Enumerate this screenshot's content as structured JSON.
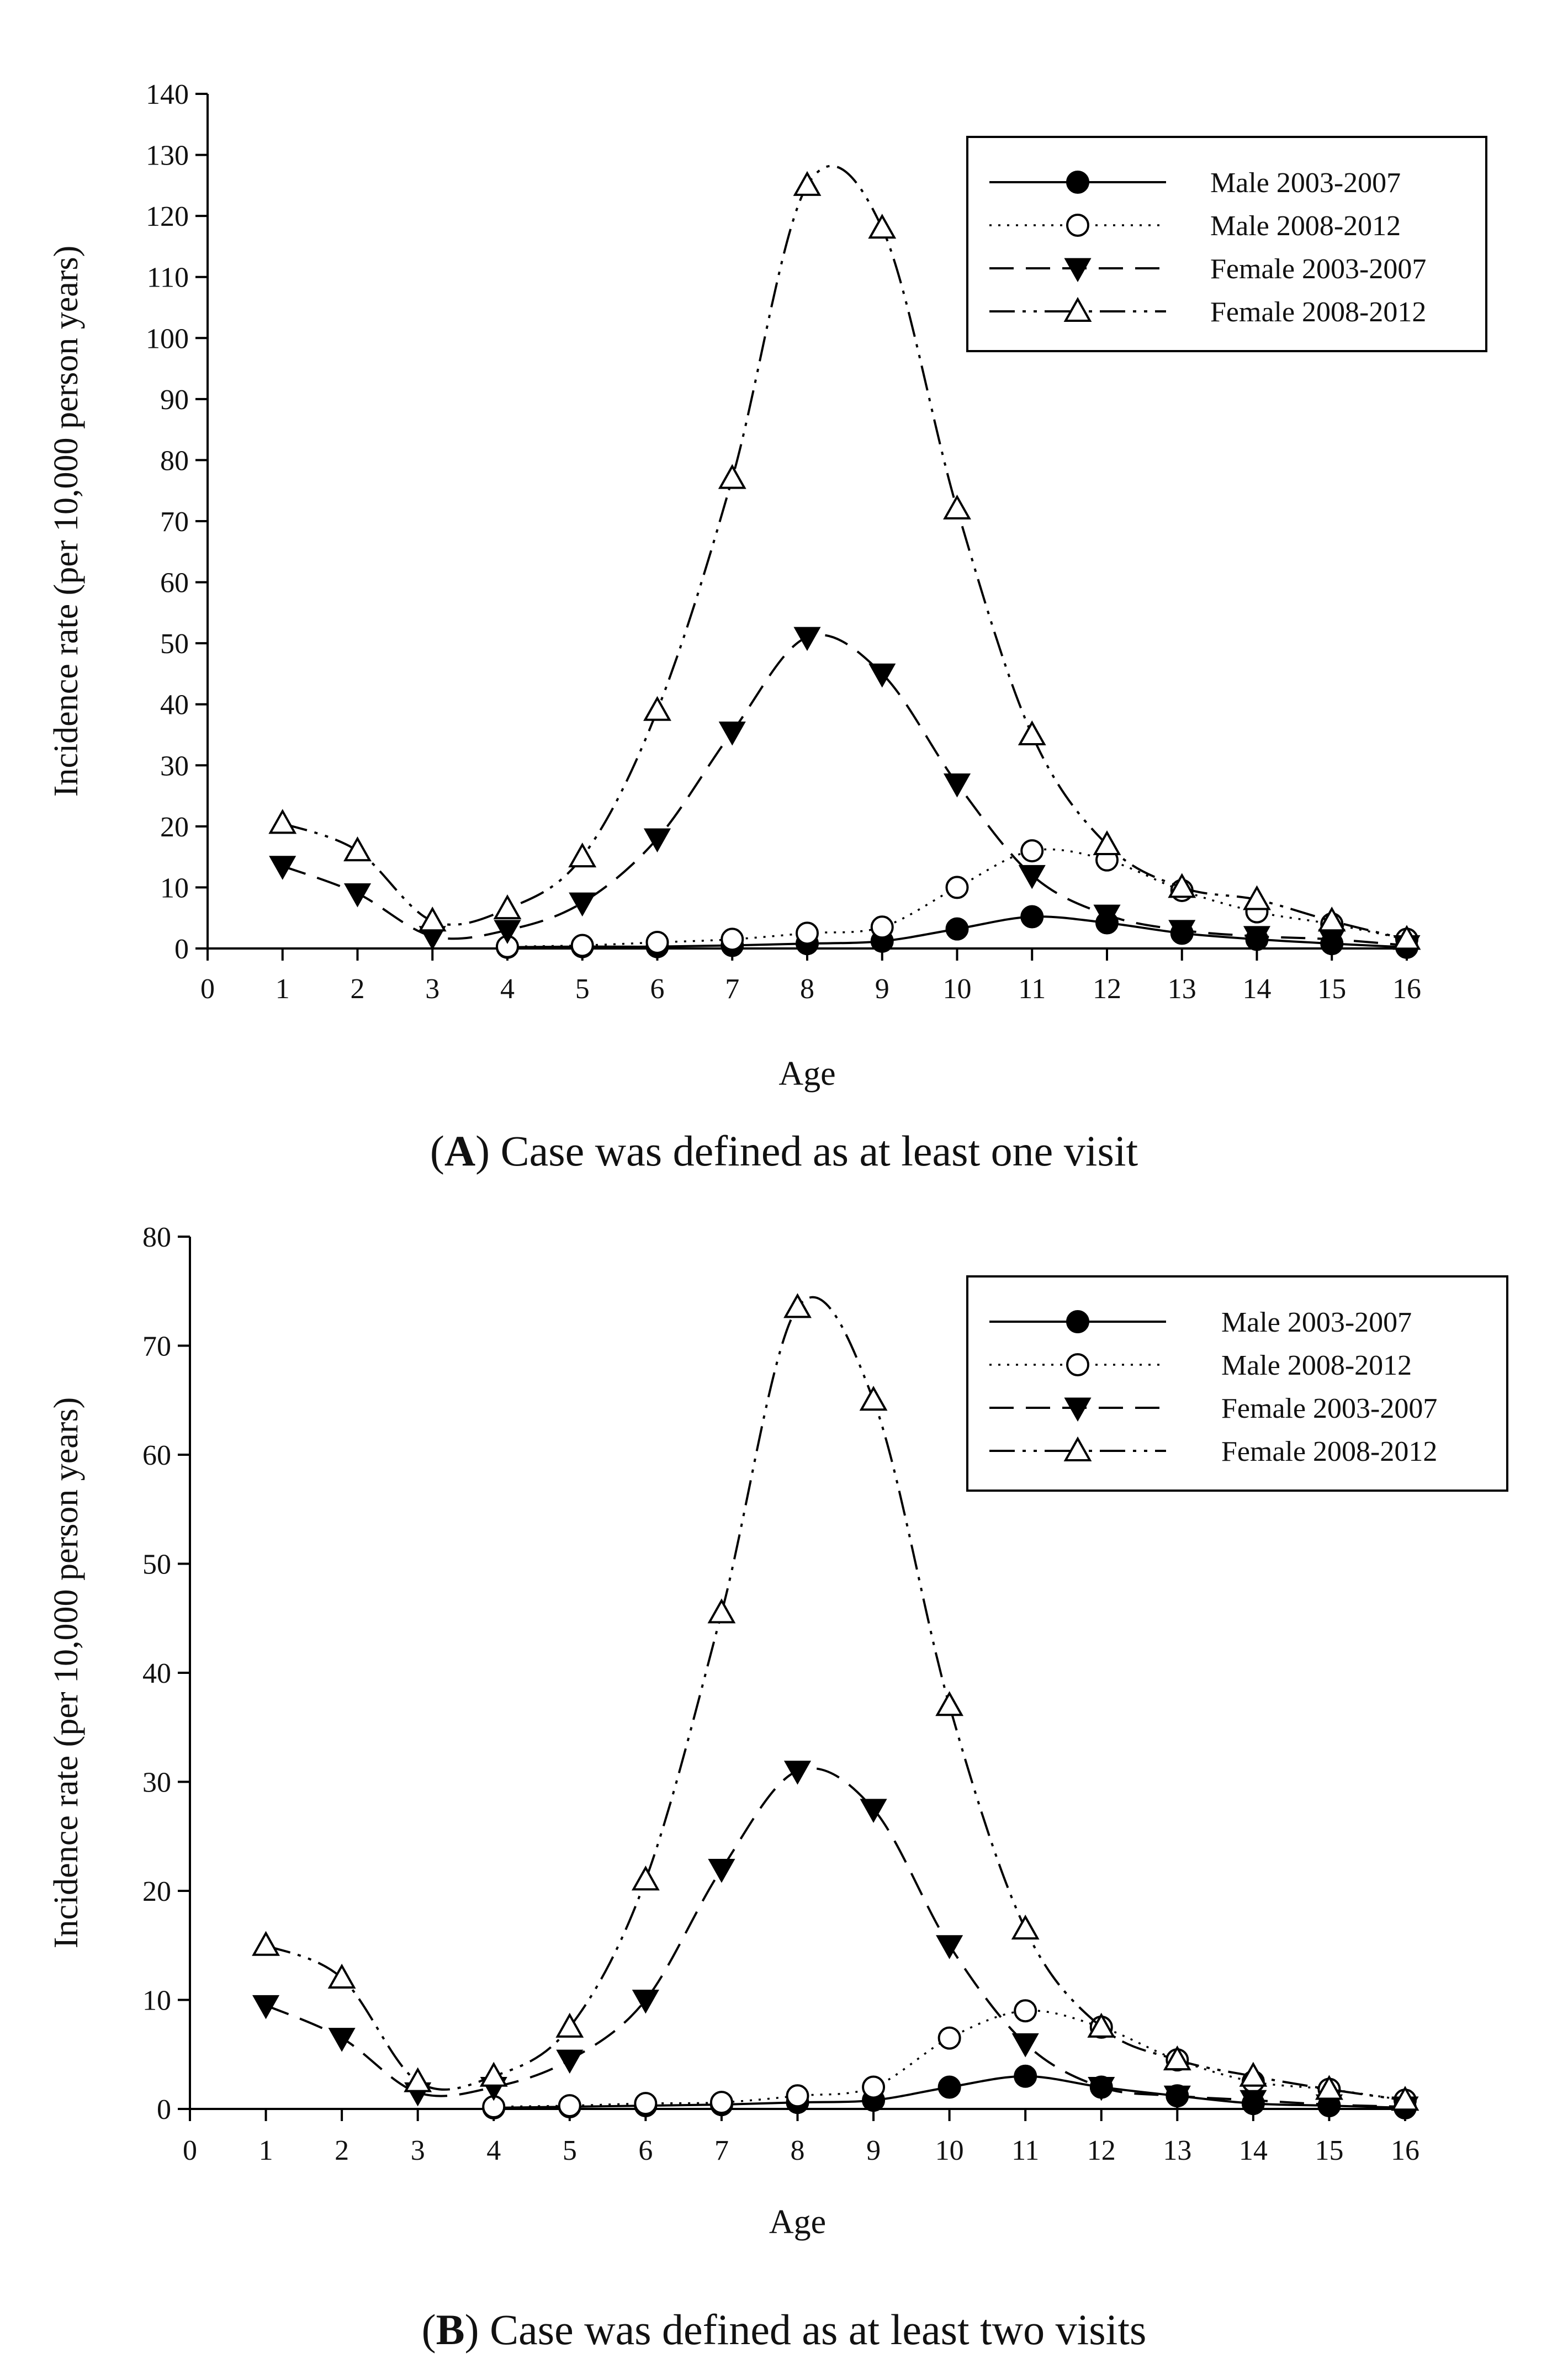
{
  "chart_data": [
    {
      "type": "line",
      "panel_label": "A",
      "caption": "Case was defined as at least one visit",
      "xlabel": "Age",
      "ylabel": "Incidence rate (per 10,000 person years)",
      "xlim": [
        0,
        16
      ],
      "ylim": [
        0,
        140
      ],
      "xticks": [
        0,
        1,
        2,
        3,
        4,
        5,
        6,
        7,
        8,
        9,
        10,
        11,
        12,
        13,
        14,
        15,
        16
      ],
      "yticks": [
        0,
        10,
        20,
        30,
        40,
        50,
        60,
        70,
        80,
        90,
        100,
        110,
        120,
        130,
        140
      ],
      "legend_position": "top-right",
      "series": [
        {
          "name": "Male 2003-2007",
          "marker": "filled-circle",
          "line": "solid",
          "x": [
            4,
            5,
            6,
            7,
            8,
            9,
            10,
            11,
            12,
            13,
            14,
            15,
            16
          ],
          "values": [
            0.2,
            0.3,
            0.3,
            0.5,
            0.8,
            1.2,
            3.2,
            5.2,
            4.2,
            2.5,
            1.5,
            0.8,
            0.2
          ]
        },
        {
          "name": "Male 2008-2012",
          "marker": "open-circle",
          "line": "dotted",
          "x": [
            4,
            5,
            6,
            7,
            8,
            9,
            10,
            11,
            12,
            13,
            14,
            15,
            16
          ],
          "values": [
            0.3,
            0.5,
            1,
            1.5,
            2.5,
            3.5,
            10,
            16,
            14.5,
            9.5,
            6,
            4,
            1.5
          ]
        },
        {
          "name": "Female 2003-2007",
          "marker": "filled-triangle-down",
          "line": "dashed",
          "x": [
            1,
            2,
            3,
            4,
            5,
            6,
            7,
            8,
            9,
            10,
            11,
            12,
            13,
            14,
            15,
            16
          ],
          "values": [
            13.5,
            9,
            2,
            3,
            7.5,
            18,
            35.5,
            51,
            45,
            27,
            12,
            5.5,
            3,
            2,
            1.5,
            0.5
          ]
        },
        {
          "name": "Female 2008-2012",
          "marker": "open-triangle-up",
          "line": "dash-dot-dot",
          "x": [
            1,
            2,
            3,
            4,
            5,
            6,
            7,
            8,
            9,
            10,
            11,
            12,
            13,
            14,
            15,
            16
          ],
          "values": [
            20.5,
            16,
            4.5,
            6.5,
            15,
            39,
            77,
            125,
            118,
            72,
            35,
            17,
            10,
            8,
            4.5,
            1.5
          ]
        }
      ]
    },
    {
      "type": "line",
      "panel_label": "B",
      "caption": "Case was defined as at least two visits",
      "xlabel": "Age",
      "ylabel": "Incidence rate (per 10,000 person years)",
      "xlim": [
        0,
        16
      ],
      "ylim": [
        0,
        80
      ],
      "xticks": [
        0,
        1,
        2,
        3,
        4,
        5,
        6,
        7,
        8,
        9,
        10,
        11,
        12,
        13,
        14,
        15,
        16
      ],
      "yticks": [
        0,
        10,
        20,
        30,
        40,
        50,
        60,
        70,
        80
      ],
      "legend_position": "top-right",
      "series": [
        {
          "name": "Male 2003-2007",
          "marker": "filled-circle",
          "line": "solid",
          "x": [
            4,
            5,
            6,
            7,
            8,
            9,
            10,
            11,
            12,
            13,
            14,
            15,
            16
          ],
          "values": [
            0.1,
            0.2,
            0.3,
            0.4,
            0.6,
            0.8,
            2,
            3,
            2,
            1.2,
            0.5,
            0.3,
            0.1
          ]
        },
        {
          "name": "Male 2008-2012",
          "marker": "open-circle",
          "line": "dotted",
          "x": [
            4,
            5,
            6,
            7,
            8,
            9,
            10,
            11,
            12,
            13,
            14,
            15,
            16
          ],
          "values": [
            0.2,
            0.3,
            0.5,
            0.6,
            1.2,
            2,
            6.5,
            9,
            7.5,
            4.5,
            2.5,
            1.8,
            0.8
          ]
        },
        {
          "name": "Female 2003-2007",
          "marker": "filled-triangle-down",
          "line": "dashed",
          "x": [
            1,
            2,
            3,
            4,
            5,
            6,
            7,
            8,
            9,
            10,
            11,
            12,
            13,
            14,
            15,
            16
          ],
          "values": [
            9.5,
            6.5,
            1.5,
            2,
            4.5,
            10,
            22,
            31,
            27.5,
            15,
            6,
            2,
            1.2,
            0.8,
            0.4,
            0.2
          ]
        },
        {
          "name": "Female 2008-2012",
          "marker": "open-triangle-up",
          "line": "dash-dot-dot",
          "x": [
            1,
            2,
            3,
            4,
            5,
            6,
            7,
            8,
            9,
            10,
            11,
            12,
            13,
            14,
            15,
            16
          ],
          "values": [
            15,
            12,
            2.5,
            3,
            7.5,
            21,
            45.5,
            73.5,
            65,
            37,
            16.5,
            7.5,
            4.5,
            3,
            1.8,
            0.8
          ]
        }
      ]
    }
  ]
}
